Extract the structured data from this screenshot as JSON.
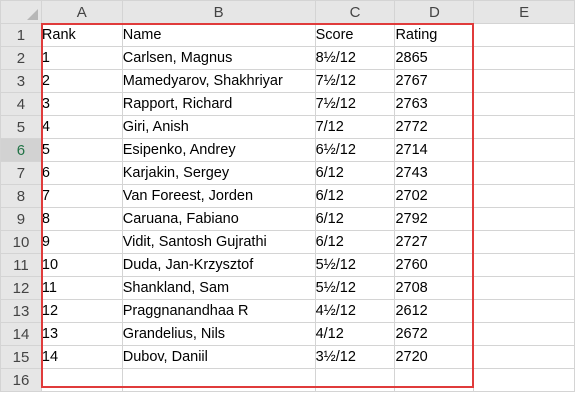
{
  "columns": [
    "A",
    "B",
    "C",
    "D",
    "E"
  ],
  "rows": [
    {
      "num": "1",
      "cells": [
        "Rank",
        "Name",
        "Score",
        "Rating",
        ""
      ]
    },
    {
      "num": "2",
      "cells": [
        "1",
        "Carlsen, Magnus",
        "8½/12",
        "2865",
        ""
      ]
    },
    {
      "num": "3",
      "cells": [
        "2",
        "Mamedyarov, Shakhriyar",
        "7½/12",
        "2767",
        ""
      ]
    },
    {
      "num": "4",
      "cells": [
        "3",
        "Rapport, Richard",
        "7½/12",
        "2763",
        ""
      ]
    },
    {
      "num": "5",
      "cells": [
        "4",
        "Giri, Anish",
        "7/12",
        "2772",
        ""
      ]
    },
    {
      "num": "6",
      "cells": [
        "5",
        "Esipenko, Andrey",
        "6½/12",
        "2714",
        ""
      ]
    },
    {
      "num": "7",
      "cells": [
        "6",
        "Karjakin, Sergey",
        "6/12",
        "2743",
        ""
      ]
    },
    {
      "num": "8",
      "cells": [
        "7",
        "Van Foreest, Jorden",
        "6/12",
        "2702",
        ""
      ]
    },
    {
      "num": "9",
      "cells": [
        "8",
        "Caruana, Fabiano",
        "6/12",
        "2792",
        ""
      ]
    },
    {
      "num": "10",
      "cells": [
        "9",
        "Vidit, Santosh Gujrathi",
        "6/12",
        "2727",
        ""
      ]
    },
    {
      "num": "11",
      "cells": [
        "10",
        "Duda, Jan-Krzysztof",
        "5½/12",
        "2760",
        ""
      ]
    },
    {
      "num": "12",
      "cells": [
        "11",
        "Shankland, Sam",
        "5½/12",
        "2708",
        ""
      ]
    },
    {
      "num": "13",
      "cells": [
        "12",
        "Praggnanandhaa R",
        "4½/12",
        "2612",
        ""
      ]
    },
    {
      "num": "14",
      "cells": [
        "13",
        "Grandelius, Nils",
        "4/12",
        "2672",
        ""
      ]
    },
    {
      "num": "15",
      "cells": [
        "14",
        "Dubov, Daniil",
        "3½/12",
        "2720",
        ""
      ]
    },
    {
      "num": "16",
      "cells": [
        "",
        "",
        "",
        "",
        ""
      ]
    }
  ],
  "active_row": "6",
  "colors": {
    "header_bg": "#e6e6e6",
    "gridline": "#d4d4d4",
    "highlight_border": "#e03b3b",
    "active_row_header": "#217346"
  }
}
